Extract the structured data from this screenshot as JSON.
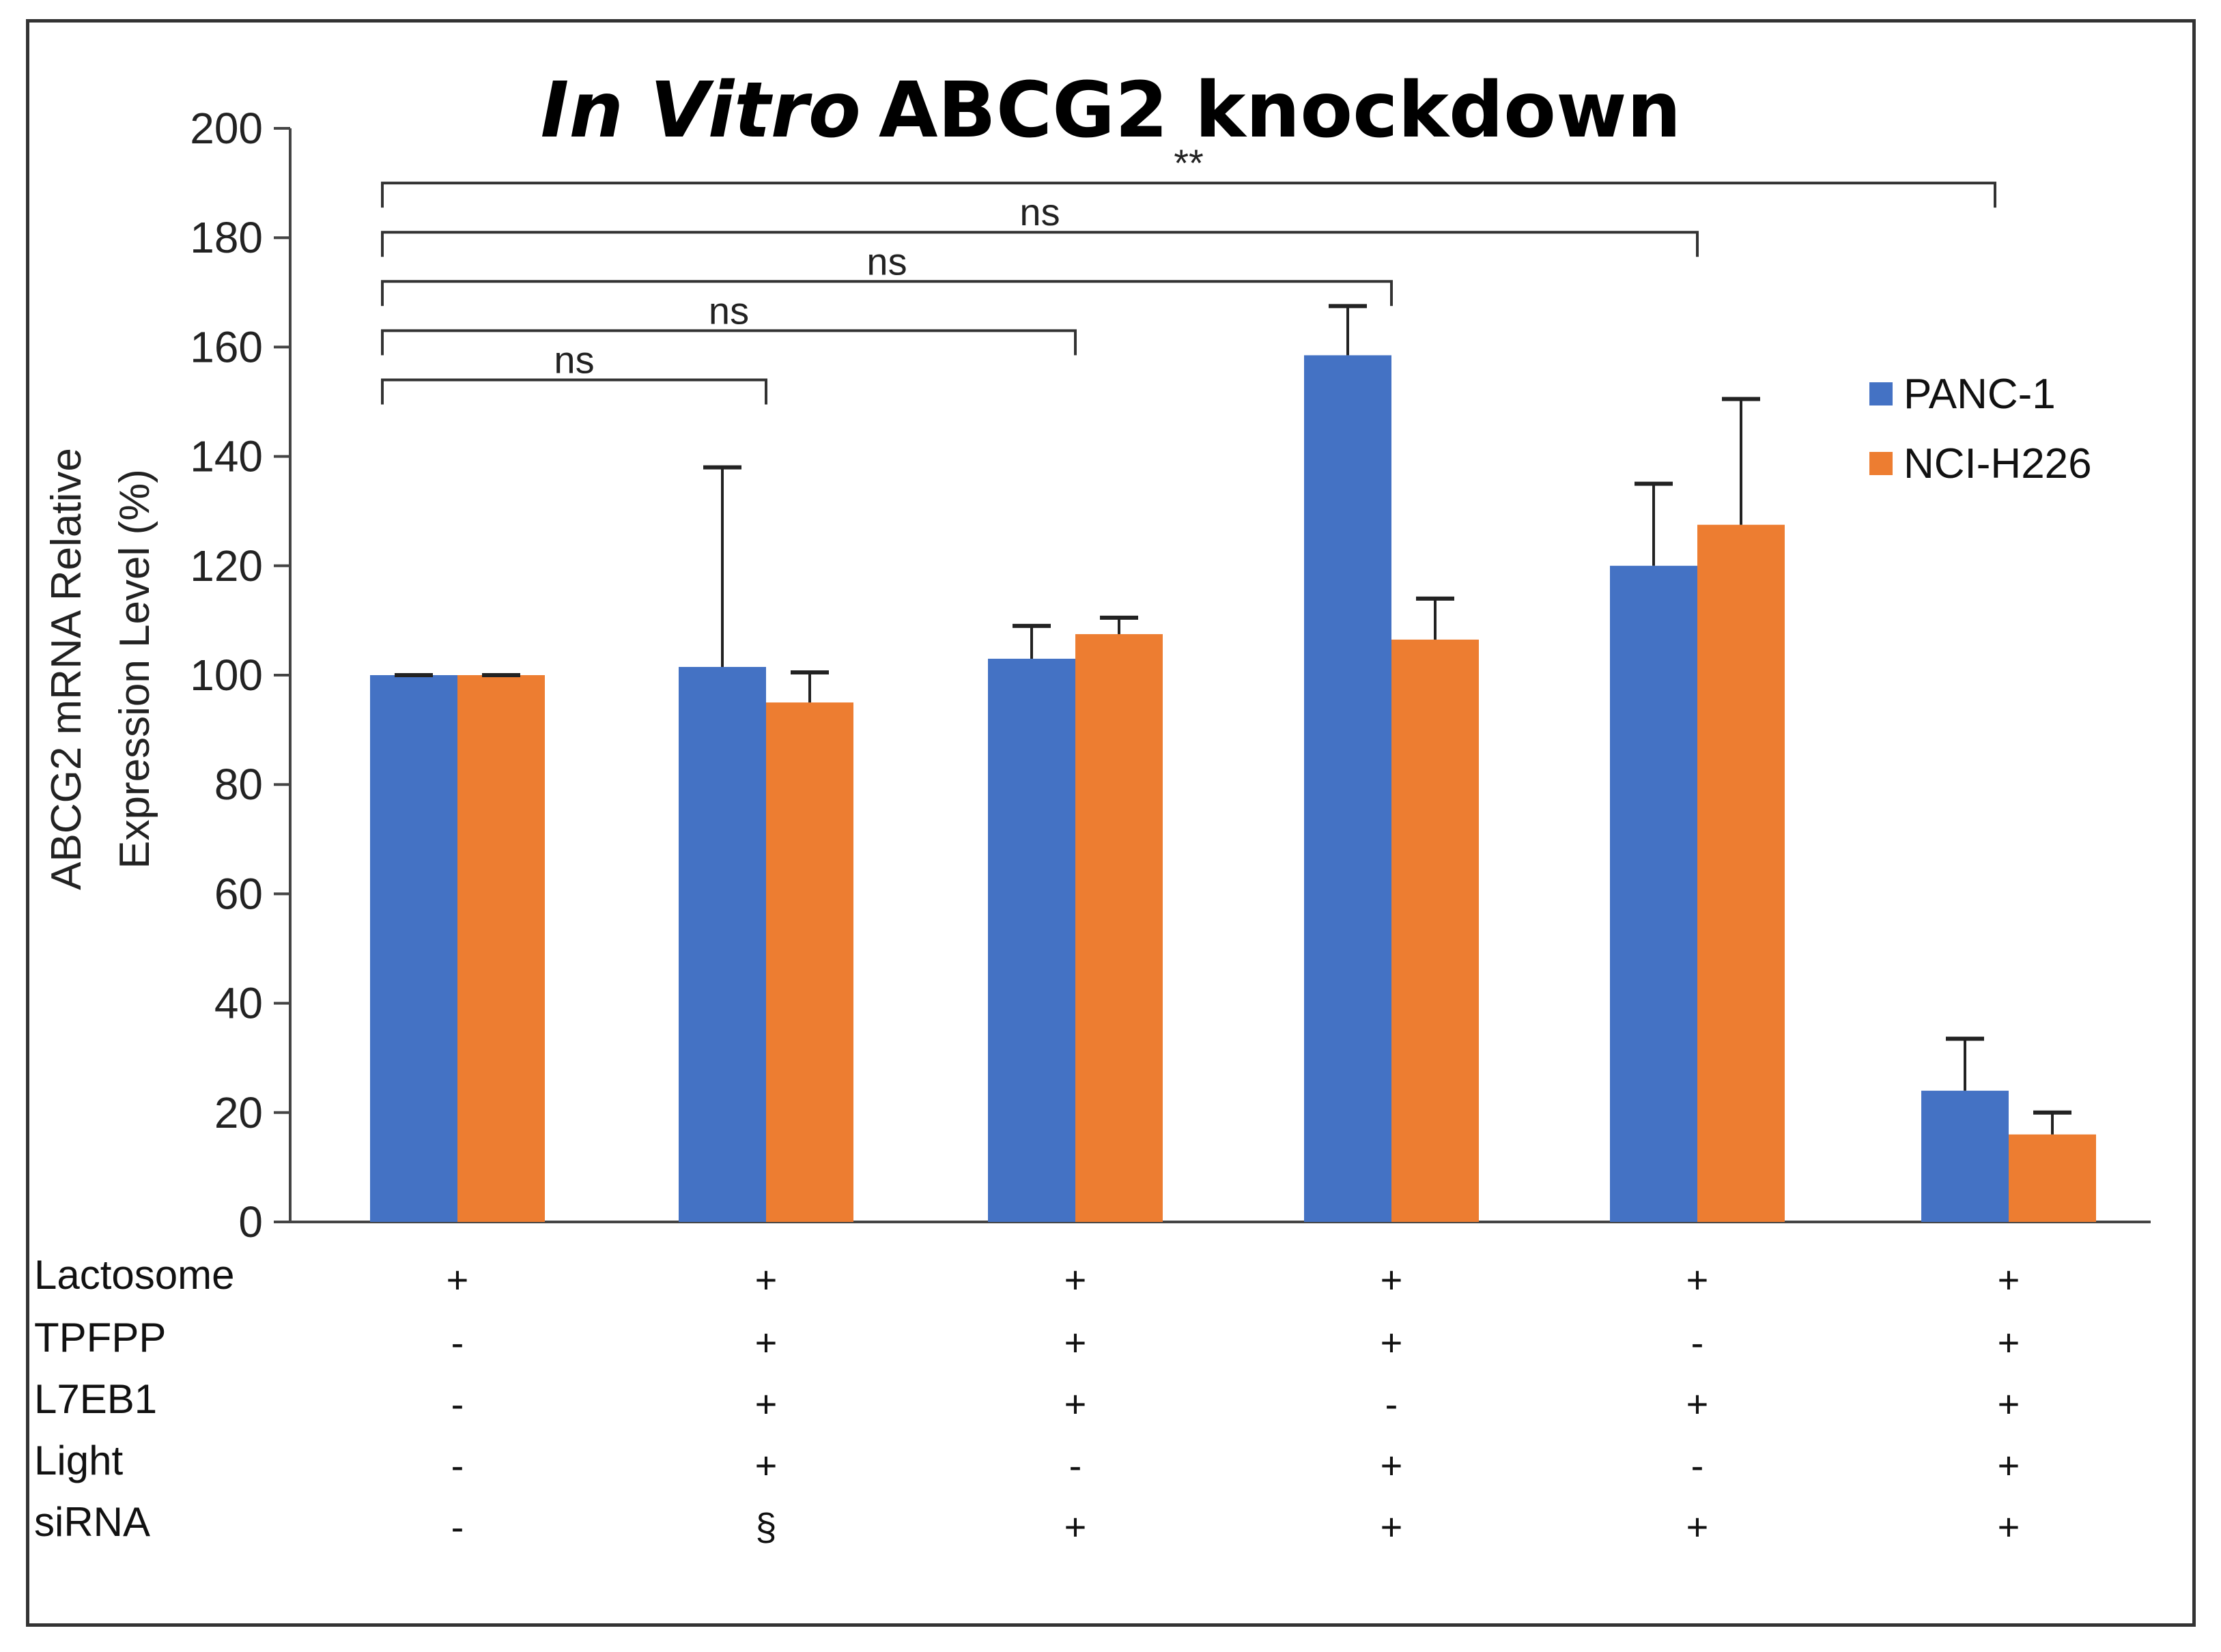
{
  "chart_data": {
    "type": "bar",
    "title_italic": "In Vitro",
    "title_rest": "ABCG2 knockdown",
    "ylabel_line1": "ABCG2 mRNA Relative",
    "ylabel_line2": "Expression Level (%)",
    "ylim": [
      0,
      200
    ],
    "yticks": [
      "0",
      "20",
      "40",
      "60",
      "80",
      "100",
      "120",
      "140",
      "160",
      "180",
      "200"
    ],
    "colors": {
      "PANC-1": "#4472C4",
      "NCI-H226": "#ED7D31"
    },
    "series": [
      {
        "name": "PANC-1",
        "values": [
          100,
          101.5,
          103,
          158.5,
          120,
          24
        ],
        "errors": [
          0,
          36.5,
          6,
          9,
          15,
          9.5
        ]
      },
      {
        "name": "NCI-H226",
        "values": [
          100,
          95,
          107.5,
          106.5,
          127.5,
          16
        ],
        "errors": [
          0,
          5.5,
          3,
          7.5,
          23,
          4
        ]
      }
    ],
    "significance": [
      {
        "label": "ns",
        "from": 0,
        "to": 1,
        "y": 154
      },
      {
        "label": "ns",
        "from": 0,
        "to": 2,
        "y": 163
      },
      {
        "label": "ns",
        "from": 0,
        "to": 3,
        "y": 172
      },
      {
        "label": "ns",
        "from": 0,
        "to": 4,
        "y": 181
      },
      {
        "label": "**",
        "from": 0,
        "to": 5,
        "y": 190
      }
    ],
    "conditions": {
      "rows": [
        "Lactosome",
        "TPFPP",
        "L7EB1",
        "Light",
        "siRNA"
      ],
      "values": [
        [
          "+",
          "+",
          "+",
          "+",
          "+",
          "+"
        ],
        [
          "-",
          "+",
          "+",
          "+",
          "-",
          "+"
        ],
        [
          "-",
          "+",
          "+",
          "-",
          "+",
          "+"
        ],
        [
          "-",
          "+",
          "-",
          "+",
          "-",
          "+"
        ],
        [
          "-",
          "§",
          "+",
          "+",
          "+",
          "+"
        ]
      ]
    }
  }
}
